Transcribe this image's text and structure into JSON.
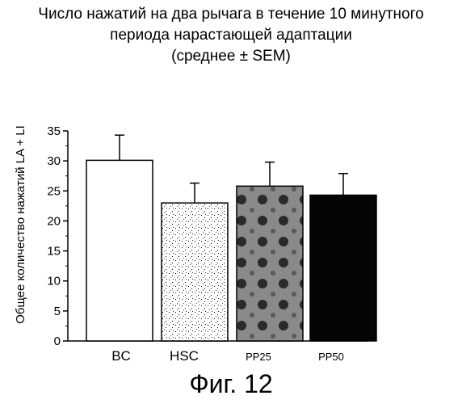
{
  "chart_data": {
    "type": "bar",
    "title_lines": [
      "Число нажатий на два рычага в течение 10 минутного",
      "периода нарастающей адаптации",
      "(среднее ± SEM)"
    ],
    "ylabel": "Общее количество нажатий LA + LI",
    "xlabel": "",
    "categories": [
      "BC",
      "HSC",
      "PP25",
      "PP50"
    ],
    "values": [
      30.1,
      23.0,
      25.8,
      24.3
    ],
    "errors": [
      4.2,
      3.3,
      4.0,
      3.6
    ],
    "bar_fills": [
      "white",
      "light-stipple",
      "gray-dotted",
      "black"
    ],
    "ylim": [
      0,
      35
    ],
    "yticks": [
      0,
      5,
      10,
      15,
      20,
      25,
      30,
      35
    ],
    "grid": false,
    "legend": "none"
  },
  "figure_label": "Фиг. 12"
}
